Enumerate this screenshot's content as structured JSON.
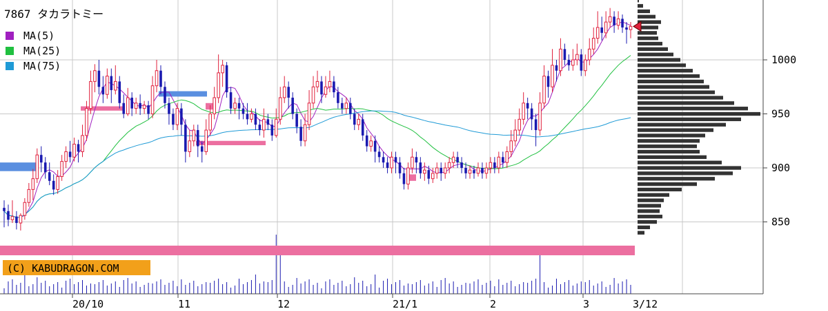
{
  "chart_data": {
    "type": "candlestick",
    "title": "7867 タカラトミー",
    "legend": [
      {
        "label": "MA(5)",
        "color": "#a020c0"
      },
      {
        "label": "MA(25)",
        "color": "#20c040"
      },
      {
        "label": "MA(75)",
        "color": "#1e9ad6"
      }
    ],
    "watermark": "(C) KABUDRAGON.COM",
    "y_axis": {
      "ticks": [
        1000,
        950,
        900,
        850
      ],
      "range": [
        810,
        1055
      ],
      "position": "right"
    },
    "x_axis": {
      "tick_labels": [
        "20/10",
        "11",
        "12",
        "21/1",
        "2",
        "3",
        "3/12"
      ]
    },
    "colors": {
      "up": "#e0203c",
      "down": "#1a1ab0",
      "grid": "#c8c8c8",
      "profile": "#333333",
      "band_pink": "#ec6fa0",
      "band_blue": "#5a8fe0",
      "watermark_bg": "#f2a01a"
    },
    "last_price_marker": 1031,
    "approx_date_range": [
      "2020-09-14",
      "2021-03-12"
    ],
    "candles": [
      [
        863,
        860,
        870,
        845
      ],
      [
        860,
        852,
        866,
        846
      ],
      [
        852,
        855,
        870,
        849
      ],
      [
        855,
        849,
        860,
        843
      ],
      [
        849,
        856,
        858,
        842
      ],
      [
        856,
        868,
        872,
        852
      ],
      [
        868,
        880,
        886,
        864
      ],
      [
        880,
        890,
        899,
        870
      ],
      [
        890,
        912,
        918,
        886
      ],
      [
        912,
        905,
        920,
        896
      ],
      [
        905,
        896,
        910,
        890
      ],
      [
        896,
        888,
        905,
        884
      ],
      [
        888,
        880,
        894,
        875
      ],
      [
        880,
        892,
        898,
        876
      ],
      [
        892,
        906,
        912,
        888
      ],
      [
        906,
        915,
        920,
        900
      ],
      [
        915,
        910,
        925,
        905
      ],
      [
        910,
        922,
        928,
        906
      ],
      [
        922,
        915,
        926,
        905
      ],
      [
        915,
        930,
        940,
        910
      ],
      [
        930,
        955,
        962,
        925
      ],
      [
        955,
        980,
        990,
        950
      ],
      [
        980,
        990,
        996,
        970
      ],
      [
        990,
        975,
        1000,
        968
      ],
      [
        975,
        968,
        985,
        960
      ],
      [
        968,
        985,
        992,
        964
      ],
      [
        985,
        972,
        992,
        960
      ],
      [
        972,
        980,
        995,
        968
      ],
      [
        980,
        960,
        985,
        955
      ],
      [
        960,
        950,
        968,
        946
      ],
      [
        950,
        965,
        974,
        948
      ],
      [
        965,
        955,
        970,
        948
      ],
      [
        955,
        960,
        965,
        950
      ],
      [
        960,
        955,
        968,
        949
      ],
      [
        955,
        958,
        962,
        950
      ],
      [
        958,
        950,
        962,
        945
      ],
      [
        950,
        976,
        985,
        946
      ],
      [
        976,
        990,
        1000,
        970
      ],
      [
        990,
        975,
        995,
        968
      ],
      [
        975,
        960,
        980,
        955
      ],
      [
        960,
        950,
        965,
        940
      ],
      [
        950,
        940,
        955,
        935
      ],
      [
        940,
        955,
        960,
        935
      ],
      [
        955,
        940,
        960,
        930
      ],
      [
        940,
        915,
        945,
        905
      ],
      [
        915,
        925,
        935,
        910
      ],
      [
        925,
        935,
        940,
        920
      ],
      [
        935,
        920,
        940,
        910
      ],
      [
        920,
        915,
        925,
        905
      ],
      [
        915,
        935,
        945,
        912
      ],
      [
        935,
        950,
        958,
        930
      ],
      [
        950,
        965,
        975,
        945
      ],
      [
        965,
        988,
        1005,
        960
      ],
      [
        988,
        995,
        1000,
        975
      ],
      [
        995,
        970,
        998,
        965
      ],
      [
        970,
        955,
        975,
        950
      ],
      [
        955,
        960,
        965,
        950
      ],
      [
        960,
        955,
        965,
        945
      ],
      [
        955,
        950,
        960,
        945
      ],
      [
        950,
        945,
        960,
        940
      ],
      [
        945,
        950,
        955,
        942
      ],
      [
        950,
        940,
        955,
        935
      ],
      [
        940,
        935,
        945,
        930
      ],
      [
        935,
        945,
        955,
        928
      ],
      [
        945,
        940,
        950,
        935
      ],
      [
        940,
        930,
        945,
        925
      ],
      [
        930,
        945,
        955,
        928
      ],
      [
        945,
        965,
        975,
        940
      ],
      [
        965,
        975,
        985,
        960
      ],
      [
        975,
        965,
        980,
        955
      ],
      [
        965,
        950,
        970,
        945
      ],
      [
        950,
        938,
        955,
        932
      ],
      [
        938,
        925,
        945,
        920
      ],
      [
        925,
        940,
        950,
        920
      ],
      [
        940,
        960,
        972,
        935
      ],
      [
        960,
        975,
        985,
        955
      ],
      [
        975,
        980,
        990,
        970
      ],
      [
        980,
        968,
        985,
        960
      ],
      [
        968,
        975,
        985,
        965
      ],
      [
        975,
        980,
        990,
        970
      ],
      [
        980,
        970,
        985,
        965
      ],
      [
        970,
        960,
        975,
        955
      ],
      [
        960,
        955,
        965,
        950
      ],
      [
        955,
        960,
        965,
        950
      ],
      [
        960,
        950,
        965,
        945
      ],
      [
        950,
        940,
        955,
        935
      ],
      [
        940,
        945,
        950,
        935
      ],
      [
        945,
        930,
        950,
        925
      ],
      [
        930,
        920,
        935,
        915
      ],
      [
        920,
        925,
        930,
        915
      ],
      [
        925,
        915,
        930,
        905
      ],
      [
        915,
        910,
        920,
        905
      ],
      [
        910,
        905,
        915,
        900
      ],
      [
        905,
        900,
        910,
        895
      ],
      [
        900,
        910,
        915,
        895
      ],
      [
        910,
        905,
        915,
        895
      ],
      [
        905,
        895,
        910,
        890
      ],
      [
        895,
        885,
        900,
        880
      ],
      [
        885,
        900,
        905,
        880
      ],
      [
        900,
        910,
        918,
        895
      ],
      [
        910,
        905,
        915,
        895
      ],
      [
        905,
        895,
        910,
        890
      ],
      [
        895,
        898,
        905,
        888
      ],
      [
        898,
        890,
        902,
        885
      ],
      [
        890,
        895,
        900,
        886
      ],
      [
        895,
        900,
        905,
        890
      ],
      [
        900,
        895,
        905,
        888
      ],
      [
        895,
        900,
        905,
        890
      ],
      [
        900,
        905,
        910,
        895
      ],
      [
        905,
        910,
        915,
        900
      ],
      [
        910,
        905,
        915,
        900
      ],
      [
        905,
        900,
        910,
        895
      ],
      [
        900,
        895,
        905,
        890
      ],
      [
        895,
        898,
        902,
        890
      ],
      [
        898,
        895,
        902,
        890
      ],
      [
        895,
        900,
        905,
        892
      ],
      [
        900,
        895,
        905,
        890
      ],
      [
        895,
        900,
        905,
        890
      ],
      [
        900,
        905,
        910,
        895
      ],
      [
        905,
        900,
        910,
        895
      ],
      [
        900,
        910,
        915,
        895
      ],
      [
        910,
        905,
        915,
        900
      ],
      [
        905,
        915,
        920,
        900
      ],
      [
        915,
        925,
        935,
        910
      ],
      [
        925,
        935,
        945,
        920
      ],
      [
        935,
        945,
        955,
        930
      ],
      [
        945,
        960,
        970,
        940
      ],
      [
        960,
        955,
        965,
        945
      ],
      [
        955,
        945,
        960,
        935
      ],
      [
        945,
        935,
        950,
        920
      ],
      [
        935,
        960,
        970,
        930
      ],
      [
        960,
        985,
        995,
        955
      ],
      [
        985,
        975,
        990,
        965
      ],
      [
        975,
        995,
        1010,
        970
      ],
      [
        995,
        990,
        1000,
        980
      ],
      [
        990,
        1010,
        1020,
        985
      ],
      [
        1010,
        1000,
        1015,
        995
      ],
      [
        1000,
        995,
        1005,
        990
      ],
      [
        995,
        1000,
        1010,
        990
      ],
      [
        1000,
        1005,
        1015,
        995
      ],
      [
        1005,
        990,
        1010,
        985
      ],
      [
        990,
        1000,
        1005,
        985
      ],
      [
        1000,
        1010,
        1020,
        995
      ],
      [
        1010,
        1020,
        1030,
        1005
      ],
      [
        1020,
        1030,
        1045,
        1015
      ],
      [
        1030,
        1025,
        1040,
        1018
      ],
      [
        1025,
        1035,
        1045,
        1020
      ],
      [
        1035,
        1040,
        1048,
        1030
      ],
      [
        1040,
        1032,
        1045,
        1025
      ],
      [
        1032,
        1038,
        1045,
        1028
      ],
      [
        1038,
        1030,
        1042,
        1025
      ],
      [
        1030,
        1028,
        1035,
        1015
      ],
      [
        1028,
        1031,
        1035,
        1020
      ]
    ],
    "profile": [
      [
        1055,
        2
      ],
      [
        1050,
        8
      ],
      [
        1045,
        18
      ],
      [
        1040,
        26
      ],
      [
        1035,
        34
      ],
      [
        1030,
        30
      ],
      [
        1025,
        28
      ],
      [
        1020,
        30
      ],
      [
        1015,
        36
      ],
      [
        1010,
        44
      ],
      [
        1005,
        52
      ],
      [
        1000,
        62
      ],
      [
        995,
        70
      ],
      [
        990,
        80
      ],
      [
        985,
        90
      ],
      [
        980,
        96
      ],
      [
        975,
        104
      ],
      [
        970,
        112
      ],
      [
        965,
        124
      ],
      [
        960,
        140
      ],
      [
        955,
        160
      ],
      [
        950,
        178
      ],
      [
        945,
        150
      ],
      [
        940,
        128
      ],
      [
        935,
        110
      ],
      [
        930,
        98
      ],
      [
        925,
        90
      ],
      [
        920,
        86
      ],
      [
        915,
        90
      ],
      [
        910,
        100
      ],
      [
        905,
        122
      ],
      [
        900,
        150
      ],
      [
        895,
        138
      ],
      [
        890,
        112
      ],
      [
        885,
        86
      ],
      [
        880,
        64
      ],
      [
        875,
        46
      ],
      [
        870,
        38
      ],
      [
        865,
        34
      ],
      [
        860,
        32
      ],
      [
        855,
        36
      ],
      [
        850,
        28
      ],
      [
        845,
        18
      ],
      [
        840,
        10
      ]
    ],
    "ma_periods": [
      5,
      25,
      75
    ],
    "bands": [
      {
        "price_from": 905,
        "price_to": 897,
        "x_from": 0,
        "x_to": 52,
        "color": "blue"
      },
      {
        "price_from": 957,
        "price_to": 953,
        "x_from": 117,
        "x_to": 180,
        "color": "pink"
      },
      {
        "price_from": 971,
        "price_to": 966,
        "x_from": 230,
        "x_to": 300,
        "color": "blue"
      },
      {
        "price_from": 925,
        "price_to": 921,
        "x_from": 284,
        "x_to": 385,
        "color": "pink"
      },
      {
        "price_from": 960,
        "price_to": 954,
        "x_from": 298,
        "x_to": 310,
        "color": "pink"
      },
      {
        "price_from": 894,
        "price_to": 888,
        "x_from": 593,
        "x_to": 603,
        "color": "pink"
      }
    ]
  }
}
